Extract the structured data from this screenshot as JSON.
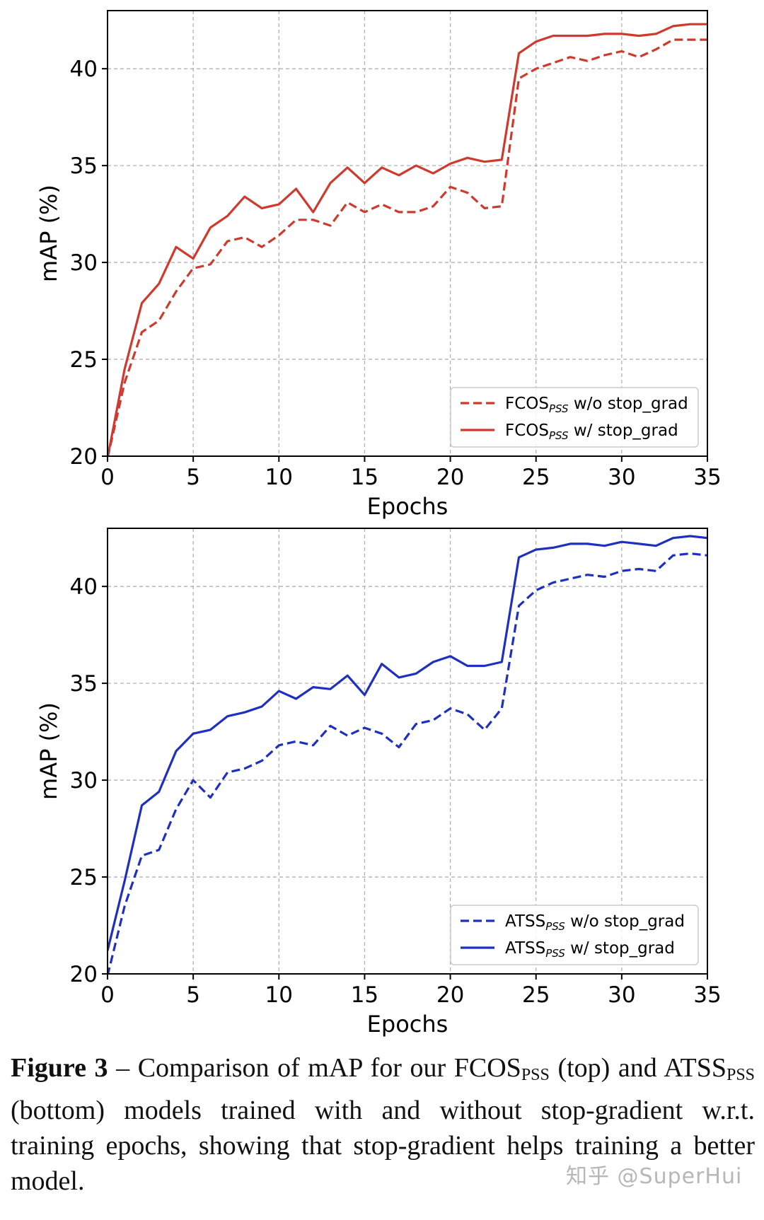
{
  "chart_data": [
    {
      "type": "line",
      "xlabel": "Epochs",
      "ylabel": "mAP (%)",
      "xlim": [
        0,
        35
      ],
      "ylim": [
        20,
        43
      ],
      "xticks": [
        0,
        5,
        10,
        15,
        20,
        25,
        30,
        35
      ],
      "yticks": [
        20,
        25,
        30,
        35,
        40
      ],
      "grid": true,
      "legend_position": "bottom-right",
      "series": [
        {
          "name_base": "FCOS",
          "name_sub": "PSS",
          "name_rest": " w/o stop_grad",
          "color": "#d0392d",
          "style": "dashed",
          "x": [
            0,
            1,
            2,
            3,
            4,
            5,
            6,
            7,
            8,
            9,
            10,
            11,
            12,
            13,
            14,
            15,
            16,
            17,
            18,
            19,
            20,
            21,
            22,
            23,
            24,
            25,
            26,
            27,
            28,
            29,
            30,
            31,
            32,
            33,
            34,
            35
          ],
          "y": [
            19.9,
            23.8,
            26.4,
            27.0,
            28.5,
            29.7,
            29.9,
            31.1,
            31.3,
            30.8,
            31.4,
            32.2,
            32.2,
            31.9,
            33.1,
            32.6,
            33.0,
            32.6,
            32.6,
            32.9,
            33.9,
            33.6,
            32.8,
            32.9,
            39.5,
            40.0,
            40.3,
            40.6,
            40.4,
            40.7,
            40.9,
            40.6,
            41.0,
            41.5,
            41.5,
            41.5
          ]
        },
        {
          "name_base": "FCOS",
          "name_sub": "PSS",
          "name_rest": " w/ stop_grad",
          "color": "#d0392d",
          "style": "solid",
          "x": [
            0,
            1,
            2,
            3,
            4,
            5,
            6,
            7,
            8,
            9,
            10,
            11,
            12,
            13,
            14,
            15,
            16,
            17,
            18,
            19,
            20,
            21,
            22,
            23,
            24,
            25,
            26,
            27,
            28,
            29,
            30,
            31,
            32,
            33,
            34,
            35
          ],
          "y": [
            19.9,
            24.5,
            27.9,
            28.9,
            30.8,
            30.2,
            31.8,
            32.4,
            33.4,
            32.8,
            33.0,
            33.8,
            32.6,
            34.1,
            34.9,
            34.1,
            34.9,
            34.5,
            35.0,
            34.6,
            35.1,
            35.4,
            35.2,
            35.3,
            40.8,
            41.4,
            41.7,
            41.7,
            41.7,
            41.8,
            41.8,
            41.7,
            41.8,
            42.2,
            42.3,
            42.3
          ]
        }
      ]
    },
    {
      "type": "line",
      "xlabel": "Epochs",
      "ylabel": "mAP (%)",
      "xlim": [
        0,
        35
      ],
      "ylim": [
        20,
        43
      ],
      "xticks": [
        0,
        5,
        10,
        15,
        20,
        25,
        30,
        35
      ],
      "yticks": [
        20,
        25,
        30,
        35,
        40
      ],
      "grid": true,
      "legend_position": "bottom-right",
      "series": [
        {
          "name_base": "ATSS",
          "name_sub": "PSS",
          "name_rest": " w/o stop_grad",
          "color": "#1f2fc0",
          "style": "dashed",
          "x": [
            0,
            1,
            2,
            3,
            4,
            5,
            6,
            7,
            8,
            9,
            10,
            11,
            12,
            13,
            14,
            15,
            16,
            17,
            18,
            19,
            20,
            21,
            22,
            23,
            24,
            25,
            26,
            27,
            28,
            29,
            30,
            31,
            32,
            33,
            34,
            35
          ],
          "y": [
            19.9,
            23.5,
            26.1,
            26.4,
            28.5,
            30.0,
            29.1,
            30.4,
            30.6,
            31.0,
            31.8,
            32.0,
            31.8,
            32.8,
            32.3,
            32.7,
            32.4,
            31.7,
            32.9,
            33.1,
            33.7,
            33.4,
            32.6,
            33.7,
            39.0,
            39.8,
            40.2,
            40.4,
            40.6,
            40.5,
            40.8,
            40.9,
            40.8,
            41.6,
            41.7,
            41.6
          ]
        },
        {
          "name_base": "ATSS",
          "name_sub": "PSS",
          "name_rest": " w/ stop_grad",
          "color": "#1f2fc0",
          "style": "solid",
          "x": [
            0,
            1,
            2,
            3,
            4,
            5,
            6,
            7,
            8,
            9,
            10,
            11,
            12,
            13,
            14,
            15,
            16,
            17,
            18,
            19,
            20,
            21,
            22,
            23,
            24,
            25,
            26,
            27,
            28,
            29,
            30,
            31,
            32,
            33,
            34,
            35
          ],
          "y": [
            21.2,
            24.8,
            28.7,
            29.4,
            31.5,
            32.4,
            32.6,
            33.3,
            33.5,
            33.8,
            34.6,
            34.2,
            34.8,
            34.7,
            35.4,
            34.4,
            36.0,
            35.3,
            35.5,
            36.1,
            36.4,
            35.9,
            35.9,
            36.1,
            41.5,
            41.9,
            42.0,
            42.2,
            42.2,
            42.1,
            42.3,
            42.2,
            42.1,
            42.5,
            42.6,
            42.5
          ]
        }
      ]
    }
  ],
  "caption": {
    "label": "Figure 3",
    "text_1": " – Comparison of mAP for our FCOS",
    "sub_1": "PSS",
    "text_2": " (top) and ATSS",
    "sub_2": "PSS",
    "text_3": " (bottom) models trained with and without stop-gradient w.r.t. training epochs, showing that stop-gradient helps training a better model."
  },
  "watermark": "知乎 @SuperHui"
}
